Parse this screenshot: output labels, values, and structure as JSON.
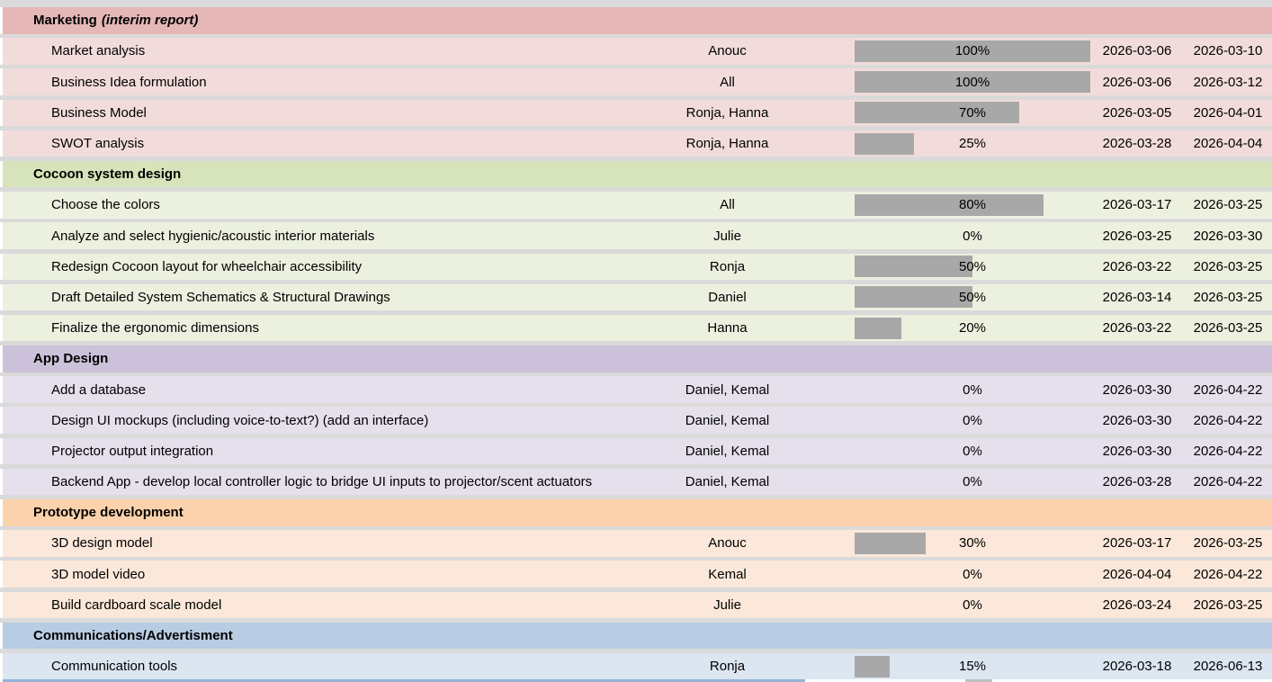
{
  "colors": {
    "separator": "#dadada",
    "progress_bar": "#a8a8a8",
    "bottom_strip": "#95b3d7",
    "sections": [
      {
        "header": "#e5b8b7",
        "row": "#f2dcdb"
      },
      {
        "header": "#d7e3ba",
        "row": "#ecf0df"
      },
      {
        "header": "#ccc1da",
        "row": "#e5e0ec"
      },
      {
        "header": "#fbd2ac",
        "row": "#fbe8da"
      },
      {
        "header": "#b8cce3",
        "row": "#dce6f1"
      }
    ]
  },
  "sections": [
    {
      "title": "Marketing",
      "note": "(interim report)",
      "tasks": [
        {
          "name": "Market analysis",
          "assignee": "Anouc",
          "progress": 100,
          "progress_label": "100%",
          "start": "2026-03-06",
          "end": "2026-03-10"
        },
        {
          "name": "Business Idea formulation",
          "assignee": "All",
          "progress": 100,
          "progress_label": "100%",
          "start": "2026-03-06",
          "end": "2026-03-12"
        },
        {
          "name": "Business Model",
          "assignee": "Ronja, Hanna",
          "progress": 70,
          "progress_label": "70%",
          "start": "2026-03-05",
          "end": "2026-04-01"
        },
        {
          "name": "SWOT analysis",
          "assignee": "Ronja, Hanna",
          "progress": 25,
          "progress_label": "25%",
          "start": "2026-03-28",
          "end": "2026-04-04"
        }
      ]
    },
    {
      "title": "Cocoon system design",
      "note": "",
      "tasks": [
        {
          "name": "Choose the colors",
          "assignee": "All",
          "progress": 80,
          "progress_label": "80%",
          "start": "2026-03-17",
          "end": "2026-03-25"
        },
        {
          "name": "Analyze and select hygienic/acoustic interior materials",
          "assignee": "Julie",
          "progress": 0,
          "progress_label": "0%",
          "start": "2026-03-25",
          "end": "2026-03-30"
        },
        {
          "name": "Redesign Cocoon layout for wheelchair accessibility",
          "assignee": "Ronja",
          "progress": 50,
          "progress_label": "50%",
          "start": "2026-03-22",
          "end": "2026-03-25"
        },
        {
          "name": "Draft Detailed System Schematics & Structural Drawings",
          "assignee": "Daniel",
          "progress": 50,
          "progress_label": "50%",
          "start": "2026-03-14",
          "end": "2026-03-25"
        },
        {
          "name": "Finalize the ergonomic dimensions",
          "assignee": "Hanna",
          "progress": 20,
          "progress_label": "20%",
          "start": "2026-03-22",
          "end": "2026-03-25"
        }
      ]
    },
    {
      "title": "App Design",
      "note": "",
      "tasks": [
        {
          "name": "Add a database",
          "assignee": "Daniel, Kemal",
          "progress": 0,
          "progress_label": "0%",
          "start": "2026-03-30",
          "end": "2026-04-22"
        },
        {
          "name": "Design UI mockups (including voice-to-text?) (add an interface)",
          "assignee": "Daniel, Kemal",
          "progress": 0,
          "progress_label": "0%",
          "start": "2026-03-30",
          "end": "2026-04-22"
        },
        {
          "name": "Projector output integration",
          "assignee": "Daniel, Kemal",
          "progress": 0,
          "progress_label": "0%",
          "start": "2026-03-30",
          "end": "2026-04-22"
        },
        {
          "name": "Backend App - develop local controller logic to bridge UI inputs to projector/scent actuators",
          "assignee": "Daniel, Kemal",
          "progress": 0,
          "progress_label": "0%",
          "start": "2026-03-28",
          "end": "2026-04-22"
        }
      ]
    },
    {
      "title": "Prototype development",
      "note": "",
      "tasks": [
        {
          "name": "3D design model",
          "assignee": "Anouc",
          "progress": 30,
          "progress_label": "30%",
          "start": "2026-03-17",
          "end": "2026-03-25"
        },
        {
          "name": "3D model video",
          "assignee": "Kemal",
          "progress": 0,
          "progress_label": "0%",
          "start": "2026-04-04",
          "end": "2026-04-22"
        },
        {
          "name": "Build cardboard scale model",
          "assignee": "Julie",
          "progress": 0,
          "progress_label": "0%",
          "start": "2026-03-24",
          "end": "2026-03-25"
        }
      ]
    },
    {
      "title": "Communications/Advertisment",
      "note": "",
      "tasks": [
        {
          "name": "Communication tools",
          "assignee": "Ronja",
          "progress": 15,
          "progress_label": "15%",
          "start": "2026-03-18",
          "end": "2026-06-13"
        }
      ]
    }
  ]
}
